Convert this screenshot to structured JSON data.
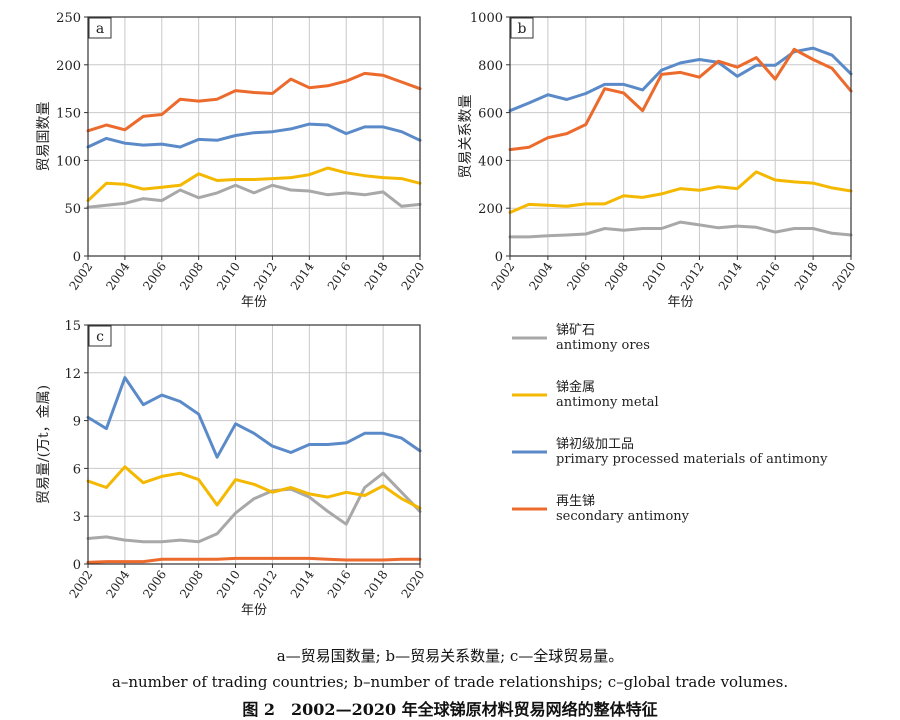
{
  "years": [
    "2002",
    "2003",
    "2004",
    "2005",
    "2006",
    "2007",
    "2008",
    "2009",
    "2010",
    "2011",
    "2012",
    "2013",
    "2014",
    "2015",
    "2016",
    "2017",
    "2018",
    "2019",
    "2020"
  ],
  "legend": [
    {
      "key": "ores",
      "zh": "锑矿石",
      "en": "antimony ores",
      "color": "#a8a8a8"
    },
    {
      "key": "metal",
      "zh": "锑金属",
      "en": "antimony metal",
      "color": "#f5b800"
    },
    {
      "key": "primary",
      "zh": "锑初级加工品",
      "en": "primary processed materials of antimony",
      "color": "#5b8ac9"
    },
    {
      "key": "secondary",
      "zh": "再生锑",
      "en": "secondary antimony",
      "color": "#ec6a2c"
    }
  ],
  "chart_data": [
    {
      "type": "line",
      "panel_label": "a",
      "xlabel": "年份",
      "ylabel": "贸易国数量",
      "ylim": [
        0,
        250
      ],
      "yticks": [
        "0",
        "50",
        "100",
        "150",
        "200",
        "250"
      ],
      "xticks": [
        "2002",
        "2004",
        "2006",
        "2008",
        "2010",
        "2012",
        "2014",
        "2016",
        "2018",
        "2020"
      ],
      "series": [
        {
          "key": "ores",
          "values": [
            51,
            53,
            55,
            60,
            58,
            69,
            61,
            66,
            74,
            66,
            74,
            69,
            68,
            64,
            66,
            64,
            67,
            52,
            54
          ]
        },
        {
          "key": "metal",
          "values": [
            58,
            76,
            75,
            70,
            72,
            74,
            86,
            79,
            80,
            80,
            81,
            82,
            85,
            92,
            87,
            84,
            82,
            81,
            76
          ]
        },
        {
          "key": "primary",
          "values": [
            114,
            123,
            118,
            116,
            117,
            114,
            122,
            121,
            126,
            129,
            130,
            133,
            138,
            137,
            128,
            135,
            135,
            130,
            121
          ]
        },
        {
          "key": "secondary",
          "values": [
            131,
            137,
            132,
            146,
            148,
            164,
            162,
            164,
            173,
            171,
            170,
            185,
            176,
            178,
            183,
            191,
            189,
            182,
            175
          ]
        }
      ]
    },
    {
      "type": "line",
      "panel_label": "b",
      "xlabel": "年份",
      "ylabel": "贸易关系数量",
      "ylim": [
        0,
        1000
      ],
      "yticks": [
        "0",
        "200",
        "400",
        "600",
        "800",
        "1000"
      ],
      "xticks": [
        "2002",
        "2004",
        "2006",
        "2008",
        "2010",
        "2012",
        "2014",
        "2016",
        "2018",
        "2020"
      ],
      "series": [
        {
          "key": "ores",
          "values": [
            80,
            80,
            85,
            88,
            92,
            115,
            108,
            115,
            115,
            142,
            130,
            118,
            125,
            120,
            100,
            115,
            115,
            95,
            88
          ]
        },
        {
          "key": "metal",
          "values": [
            182,
            216,
            212,
            208,
            218,
            218,
            252,
            245,
            260,
            282,
            275,
            290,
            282,
            352,
            318,
            310,
            305,
            285,
            272
          ]
        },
        {
          "key": "primary",
          "values": [
            608,
            640,
            675,
            655,
            680,
            718,
            718,
            695,
            778,
            808,
            822,
            810,
            752,
            798,
            798,
            855,
            870,
            840,
            762
          ]
        },
        {
          "key": "secondary",
          "values": [
            445,
            455,
            495,
            512,
            550,
            700,
            682,
            608,
            760,
            768,
            748,
            815,
            790,
            830,
            740,
            865,
            822,
            785,
            690
          ]
        }
      ]
    },
    {
      "type": "line",
      "panel_label": "c",
      "xlabel": "年份",
      "ylabel": "贸易量/(万t，金属)",
      "ylim": [
        0,
        15
      ],
      "yticks": [
        "0",
        "3",
        "6",
        "9",
        "12",
        "15"
      ],
      "xticks": [
        "2002",
        "2004",
        "2006",
        "2008",
        "2010",
        "2012",
        "2014",
        "2016",
        "2018",
        "2020"
      ],
      "series": [
        {
          "key": "ores",
          "values": [
            1.6,
            1.7,
            1.5,
            1.4,
            1.4,
            1.5,
            1.4,
            1.9,
            3.2,
            4.1,
            4.6,
            4.7,
            4.2,
            3.3,
            2.5,
            4.8,
            5.7,
            4.5,
            3.3
          ]
        },
        {
          "key": "metal",
          "values": [
            5.2,
            4.8,
            6.1,
            5.1,
            5.5,
            5.7,
            5.3,
            3.7,
            5.3,
            5.0,
            4.5,
            4.8,
            4.4,
            4.2,
            4.5,
            4.3,
            4.9,
            4.1,
            3.5
          ]
        },
        {
          "key": "primary",
          "values": [
            9.2,
            8.5,
            11.7,
            10.0,
            10.6,
            10.2,
            9.4,
            6.7,
            8.8,
            8.2,
            7.4,
            7.0,
            7.5,
            7.5,
            7.6,
            8.2,
            8.2,
            7.9,
            7.1
          ]
        },
        {
          "key": "secondary",
          "values": [
            0.1,
            0.15,
            0.15,
            0.15,
            0.3,
            0.3,
            0.3,
            0.3,
            0.35,
            0.35,
            0.35,
            0.35,
            0.35,
            0.3,
            0.25,
            0.25,
            0.25,
            0.3,
            0.3
          ]
        }
      ]
    }
  ],
  "captions": {
    "line1": "a—贸易国数量; b—贸易关系数量; c—全球贸易量。",
    "line2": "a–number of trading countries; b–number of trade relationships; c–global trade volumes.",
    "line3": "图 2　2002—2020 年全球锑原材料贸易网络的整体特征"
  }
}
